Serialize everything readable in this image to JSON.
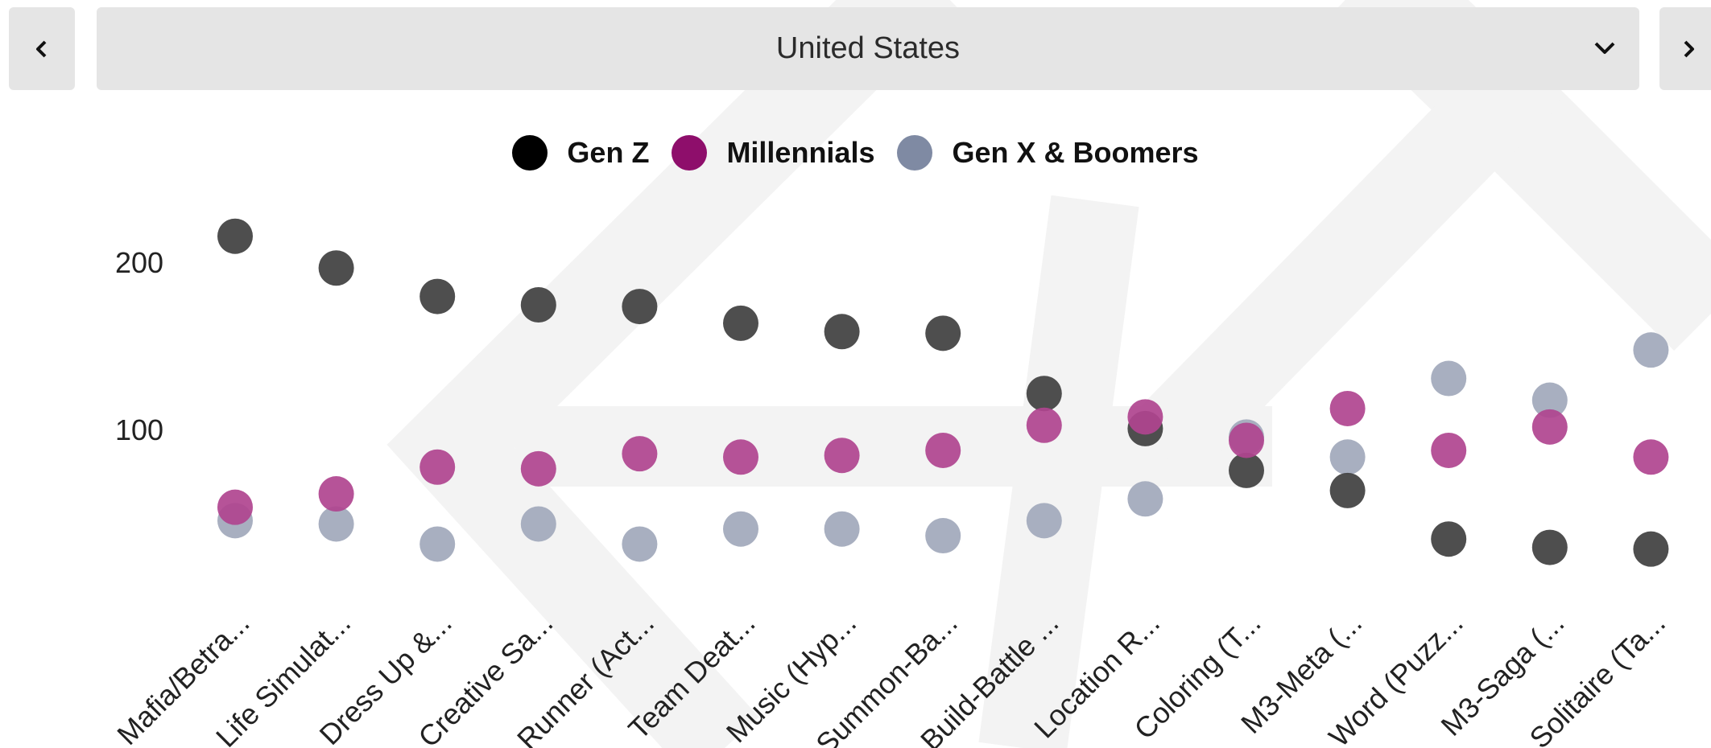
{
  "filter": {
    "selected_country": "United States",
    "prev_icon": "chevron-left-icon",
    "next_icon": "chevron-right-icon",
    "dropdown_icon": "chevron-down-icon"
  },
  "legend": [
    {
      "name": "Gen Z",
      "color": "#444444",
      "swatch": "#000000"
    },
    {
      "name": "Millennials",
      "color": "#b0448f",
      "swatch": "#8e0e6b"
    },
    {
      "name": "Gen X & Boomers",
      "color": "#a3abbd",
      "swatch": "#7f8aa3"
    }
  ],
  "chart_data": {
    "type": "scatter",
    "categories": [
      "Mafia/Betra...",
      "Life Simulat...",
      "Dress Up &...",
      "Creative Sa...",
      "Runner (Act...",
      "Team Deat...",
      "Music (Hyp...",
      "Summon-Ba...",
      "Build-Battle ...",
      "Location R...",
      "Coloring (T...",
      "M3-Meta (...",
      "Word (Puzz...",
      "M3-Saga (...",
      "Solitaire (Ta..."
    ],
    "series": [
      {
        "name": "Gen Z",
        "values": [
          216,
          197,
          180,
          175,
          174,
          164,
          159,
          158,
          122,
          101,
          76,
          64,
          35,
          30,
          29
        ]
      },
      {
        "name": "Millennials",
        "values": [
          54,
          62,
          78,
          77,
          86,
          84,
          85,
          88,
          103,
          108,
          94,
          113,
          88,
          102,
          84
        ]
      },
      {
        "name": "Gen X & Boomers",
        "values": [
          46,
          44,
          32,
          44,
          32,
          41,
          41,
          37,
          46,
          59,
          96,
          84,
          131,
          118,
          148
        ]
      }
    ],
    "y_ticks": [
      "100",
      "200"
    ],
    "ylim": [
      0,
      240
    ],
    "grid": false,
    "legend_position": "top-center"
  }
}
